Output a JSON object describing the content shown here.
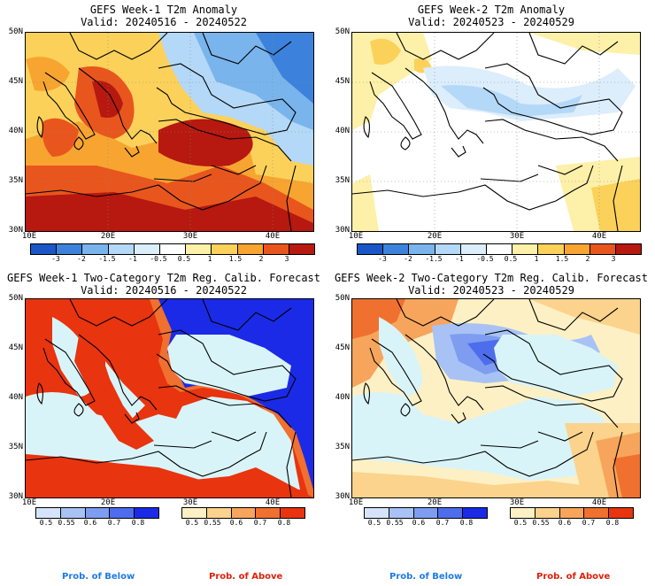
{
  "panels": [
    {
      "title": "GEFS Week-1 T2m Anomaly",
      "valid": "Valid: 20240516 - 20240522",
      "lat_labels": [
        "50N",
        "45N",
        "40N",
        "35N",
        "30N"
      ],
      "lon_labels": [
        "10E",
        "20E",
        "30E",
        "40E"
      ]
    },
    {
      "title": "GEFS Week-2 T2m Anomaly",
      "valid": "Valid: 20240523 - 20240529",
      "lat_labels": [
        "50N",
        "45N",
        "40N",
        "35N",
        "30N"
      ],
      "lon_labels": [
        "10E",
        "20E",
        "30E",
        "40E"
      ]
    },
    {
      "title": "GEFS Week-1 Two-Category T2m Reg. Calib. Forecast",
      "valid": "Valid: 20240516 - 20240522",
      "lat_labels": [
        "50N",
        "45N",
        "40N",
        "35N",
        "30N"
      ],
      "lon_labels": [
        "10E",
        "20E",
        "30E",
        "40E"
      ]
    },
    {
      "title": "GEFS Week-2 Two-Category T2m Reg. Calib. Forecast",
      "valid": "Valid: 20240523 - 20240529",
      "lat_labels": [
        "50N",
        "45N",
        "40N",
        "35N",
        "30N"
      ],
      "lon_labels": [
        "10E",
        "20E",
        "30E",
        "40E"
      ]
    }
  ],
  "anomaly_colorbar": {
    "labels": [
      "-3",
      "-2",
      "-1.5",
      "-1",
      "-0.5",
      "0.5",
      "1",
      "1.5",
      "2",
      "3"
    ],
    "colors": [
      "#1a56c6",
      "#3c82dc",
      "#79b4ec",
      "#b4d8f7",
      "#dcedfc",
      "#ffffff",
      "#fdf0a8",
      "#fbd15a",
      "#f7a530",
      "#e8561e",
      "#b7180f"
    ]
  },
  "prob_colorbar": {
    "below_labels": [
      "0.5",
      "0.55",
      "0.6",
      "0.7",
      "0.8"
    ],
    "above_labels": [
      "0.5",
      "0.55",
      "0.6",
      "0.7",
      "0.8"
    ],
    "below_colors": [
      "#d6e4fb",
      "#a8c2f5",
      "#7e9df0",
      "#4d6ded",
      "#1b2ae6"
    ],
    "above_colors": [
      "#fdf0c4",
      "#fbd38c",
      "#f7a55c",
      "#f0702f",
      "#e8340f"
    ],
    "prob_below": "Prob. of Below",
    "prob_above": "Prob. of Above",
    "prob_below_color": "#1e7ae8",
    "prob_above_color": "#e0200b"
  },
  "map_colors": {
    "sea": "#d9f4f8",
    "coast": "#000000"
  }
}
